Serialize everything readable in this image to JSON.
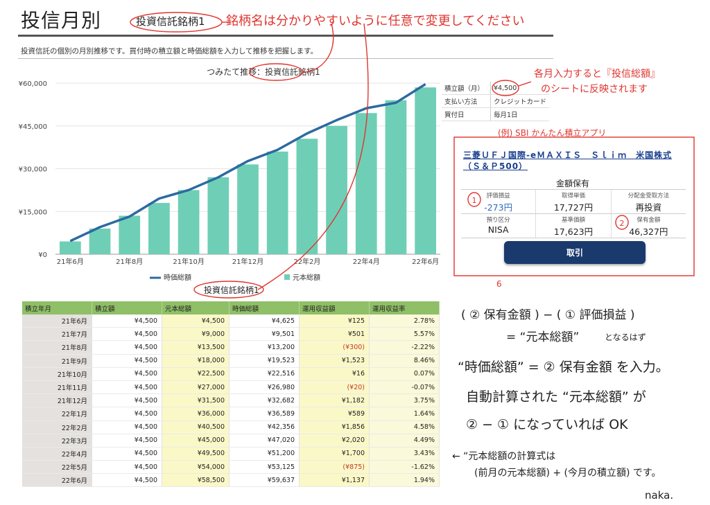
{
  "header": {
    "title": "投信月別",
    "fund_name": "投資信託銘柄1",
    "description": "投資信託の個別の月別推移です。買付時の積立額と時価総額を入力して推移を把握します。"
  },
  "chart_data": {
    "type": "bar",
    "title": "つみたて推移：投資信託銘柄1",
    "categories": [
      "21年6月",
      "21年7月",
      "21年8月",
      "21年9月",
      "21年10月",
      "21年11月",
      "21年12月",
      "22年1月",
      "22年2月",
      "22年3月",
      "22年4月",
      "22年5月",
      "22年6月"
    ],
    "x_tick_labels": [
      "21年6月",
      "21年8月",
      "21年10月",
      "21年12月",
      "22年2月",
      "22年4月",
      "22年6月"
    ],
    "y_tick_labels": [
      "¥0",
      "¥15,000",
      "¥30,000",
      "¥45,000",
      "¥60,000"
    ],
    "ylim": [
      0,
      60000
    ],
    "series": [
      {
        "name": "元本総額",
        "type": "bar",
        "color": "#6fcfb6",
        "values": [
          4500,
          9000,
          13500,
          18000,
          22500,
          27000,
          31500,
          36000,
          40500,
          45000,
          49500,
          54000,
          58500
        ]
      },
      {
        "name": "時価総額",
        "type": "line",
        "color": "#2c6aa0",
        "values": [
          4625,
          9501,
          13200,
          19523,
          22516,
          26980,
          32682,
          36589,
          42356,
          47020,
          51200,
          53125,
          59637
        ]
      }
    ],
    "legend": [
      "時価総額",
      "元本総額"
    ],
    "legend_position": "bottom"
  },
  "info": {
    "rows": [
      {
        "label": "積立額（月）",
        "value": "¥4,500"
      },
      {
        "label": "支払い方法",
        "value": "クレジットカード"
      },
      {
        "label": "買付日",
        "value": "毎月1日"
      }
    ]
  },
  "sbi": {
    "fund": "三菱ＵＦＪ国際-eＭＡＸＩＳ　Ｓｌｉｍ　米国株式（Ｓ＆Ｐ500）",
    "mode": "金額保有",
    "row1": [
      {
        "label": "評価損益",
        "value": "-273円"
      },
      {
        "label": "取得単価",
        "value": "17,727円"
      },
      {
        "label": "分配金受取方法",
        "value": "再投資"
      }
    ],
    "row2": [
      {
        "label": "預り区分",
        "value": "NISA"
      },
      {
        "label": "基準価額",
        "value": "17,623円"
      },
      {
        "label": "保有金額",
        "value": "46,327円"
      }
    ],
    "button": "取引"
  },
  "table": {
    "label": "投資信託銘柄1",
    "headers": [
      "積立年月",
      "積立額",
      "元本総額",
      "時価総額",
      "運用収益額",
      "運用収益率"
    ],
    "rows": [
      [
        "21年6月",
        "¥4,500",
        "¥4,500",
        "¥4,625",
        "¥125",
        "2.78%"
      ],
      [
        "21年7月",
        "¥4,500",
        "¥9,000",
        "¥9,501",
        "¥501",
        "5.57%"
      ],
      [
        "21年8月",
        "¥4,500",
        "¥13,500",
        "¥13,200",
        "(¥300)",
        "-2.22%"
      ],
      [
        "21年9月",
        "¥4,500",
        "¥18,000",
        "¥19,523",
        "¥1,523",
        "8.46%"
      ],
      [
        "21年10月",
        "¥4,500",
        "¥22,500",
        "¥22,516",
        "¥16",
        "0.07%"
      ],
      [
        "21年11月",
        "¥4,500",
        "¥27,000",
        "¥26,980",
        "(¥20)",
        "-0.07%"
      ],
      [
        "21年12月",
        "¥4,500",
        "¥31,500",
        "¥32,682",
        "¥1,182",
        "3.75%"
      ],
      [
        "22年1月",
        "¥4,500",
        "¥36,000",
        "¥36,589",
        "¥589",
        "1.64%"
      ],
      [
        "22年2月",
        "¥4,500",
        "¥40,500",
        "¥42,356",
        "¥1,856",
        "4.58%"
      ],
      [
        "22年3月",
        "¥4,500",
        "¥45,000",
        "¥47,020",
        "¥2,020",
        "4.49%"
      ],
      [
        "22年4月",
        "¥4,500",
        "¥49,500",
        "¥51,200",
        "¥1,700",
        "3.43%"
      ],
      [
        "22年5月",
        "¥4,500",
        "¥54,000",
        "¥53,125",
        "(¥875)",
        "-1.62%"
      ],
      [
        "22年6月",
        "¥4,500",
        "¥58,500",
        "¥59,637",
        "¥1,137",
        "1.94%"
      ]
    ]
  },
  "annotations": {
    "name_note": "銘柄名は分かりやすいように任意で変更してください",
    "amount_note_1": "各月入力すると『投信総額』",
    "amount_note_2": "のシートに反映されます",
    "sbi_note": "(例) SBI かんたん積立アプリ",
    "formula_1": "( ② 保有金額 ) − ( ① 評価損益 )",
    "formula_2": "= “元本総額”",
    "formula_2b": "となるはず",
    "input_note_1": "“時価総額” = ② 保有金額 を入力。",
    "input_note_2": "自動計算された “元本総額” が",
    "input_note_3": "② − ① になっていれば OK",
    "calc_note_1": "← “元本総額の計算式は",
    "calc_note_2": "(前月の元本総額) + (今月の積立額) です。",
    "signature": "naka.",
    "circle_1": "1",
    "circle_2": "2",
    "marker_6": "6"
  }
}
